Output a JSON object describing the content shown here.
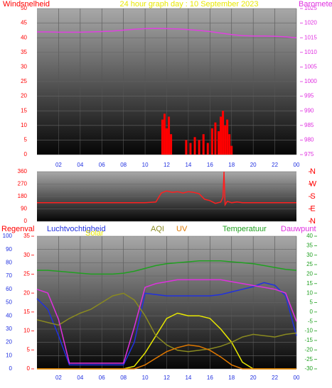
{
  "title": "24 hour graph day : 10 September 2023",
  "chart_data": [
    {
      "type": "combo",
      "ylabel": "Windsnelheid",
      "y2label": "Barometer",
      "xlim": [
        0,
        24
      ],
      "xticks": [
        {
          "value": 2,
          "label": "02"
        },
        {
          "value": 4,
          "label": "04"
        },
        {
          "value": 6,
          "label": "06"
        },
        {
          "value": 8,
          "label": "08"
        },
        10,
        12,
        14,
        16,
        18,
        20,
        22,
        {
          "value": 24,
          "label": "00"
        }
      ],
      "ylim": [
        0,
        50
      ],
      "yticks": [
        0,
        5,
        10,
        15,
        20,
        25,
        30,
        35,
        40,
        45,
        50
      ],
      "y2lim": [
        975,
        1025
      ],
      "y2ticks": [
        975,
        980,
        985,
        990,
        995,
        1000,
        1005,
        1010,
        1015,
        1020,
        1025
      ],
      "series": [
        {
          "kind": "bar",
          "color": "#ff0000",
          "x": [
            11.6,
            11.8,
            12.0,
            12.2,
            12.4,
            13.8,
            14.2,
            14.6,
            15.0,
            15.4,
            15.8,
            16.2,
            16.5,
            16.8,
            17.0,
            17.2,
            17.4,
            17.6,
            17.8,
            18.0
          ],
          "values": [
            12,
            14,
            9,
            13,
            7,
            5,
            4,
            6,
            5,
            7,
            4,
            9,
            11,
            8,
            13,
            15,
            10,
            12,
            7,
            3
          ]
        },
        {
          "kind": "line",
          "axis": "y2",
          "color": "#e040e0",
          "x": [
            0,
            1,
            2,
            3,
            4,
            5,
            6,
            7,
            8,
            9,
            10,
            11,
            12,
            13,
            14,
            15,
            16,
            17,
            18,
            19,
            20,
            21,
            22,
            23,
            24
          ],
          "values": [
            1017,
            1017,
            1016.9,
            1016.9,
            1016.9,
            1017,
            1017.1,
            1017.3,
            1017.6,
            1017.9,
            1018.1,
            1018.2,
            1018.1,
            1018,
            1017.8,
            1017.5,
            1017.1,
            1016.6,
            1016.1,
            1015.7,
            1015.6,
            1015.6,
            1015.5,
            1015.3,
            1015
          ]
        }
      ]
    },
    {
      "type": "line",
      "xlim": [
        0,
        24
      ],
      "ylim": [
        0,
        360
      ],
      "yticks": [
        0,
        90,
        180,
        270,
        360
      ],
      "y2ticks": [
        {
          "value": 360,
          "label": "N"
        },
        {
          "value": 270,
          "label": "W"
        },
        {
          "value": 180,
          "label": "S"
        },
        {
          "value": 90,
          "label": "E"
        },
        {
          "value": 0,
          "label": "N"
        }
      ],
      "series": [
        {
          "color": "#ff2020",
          "x": [
            0,
            2,
            4,
            6,
            8,
            10,
            11,
            11.5,
            12,
            12.5,
            13,
            13.5,
            14,
            14.5,
            15,
            15.5,
            16,
            16.5,
            17,
            17.2,
            17.3,
            17.4,
            17.6,
            18,
            18.5,
            19,
            20,
            22,
            24
          ],
          "values": [
            135,
            135,
            135,
            135,
            135,
            135,
            140,
            205,
            220,
            210,
            215,
            205,
            215,
            210,
            200,
            160,
            150,
            130,
            140,
            175,
            360,
            120,
            145,
            135,
            140,
            135,
            135,
            135,
            135
          ]
        }
      ]
    },
    {
      "type": "line",
      "ylabel": "Regenval",
      "xlim": [
        0,
        24
      ],
      "xticks": [
        {
          "value": 2,
          "label": "02"
        },
        {
          "value": 4,
          "label": "04"
        },
        {
          "value": 6,
          "label": "06"
        },
        {
          "value": 8,
          "label": "08"
        },
        10,
        12,
        14,
        16,
        18,
        20,
        22,
        {
          "value": 24,
          "label": "00"
        }
      ],
      "x": [
        0,
        1,
        2,
        3,
        4,
        5,
        6,
        7,
        8,
        9,
        10,
        11,
        12,
        13,
        14,
        15,
        16,
        17,
        18,
        19,
        20,
        21,
        22,
        23,
        24
      ],
      "ylim": [
        0,
        100
      ],
      "yticks": [
        0,
        10,
        20,
        30,
        40,
        50,
        60,
        70,
        80,
        90,
        100
      ],
      "y3lim": [
        0,
        35
      ],
      "y3ticks": [
        0,
        5,
        10,
        15,
        20,
        25,
        30,
        35
      ],
      "y2lim": [
        -30,
        40
      ],
      "y2ticks": [
        -30,
        -25,
        -20,
        -15,
        -10,
        -5,
        0,
        5,
        10,
        15,
        20,
        25,
        30,
        35,
        40
      ],
      "series": [
        {
          "name": "Luchtvochtigheid",
          "color": "#2030e0",
          "values": [
            53,
            45,
            25,
            3,
            3,
            3,
            3,
            3,
            3,
            20,
            57,
            56,
            55,
            55,
            55,
            55,
            55,
            56,
            58,
            60,
            62,
            65,
            63,
            55,
            25
          ]
        },
        {
          "name": "Solar",
          "color": "#e8e800",
          "values": [
            0,
            0,
            0,
            0,
            0,
            0,
            0,
            0,
            0,
            2,
            12,
            25,
            38,
            42,
            40,
            40,
            38,
            30,
            20,
            5,
            0,
            0,
            0,
            0,
            0
          ]
        },
        {
          "name": "AQI",
          "color": "#8a8a20",
          "values": [
            37,
            35,
            33,
            38,
            42,
            45,
            50,
            55,
            57,
            52,
            40,
            25,
            18,
            14,
            13,
            14,
            15,
            17,
            20,
            24,
            26,
            25,
            24,
            26,
            27
          ]
        },
        {
          "name": "UV",
          "color": "#e07800",
          "values": [
            0,
            0,
            0,
            0,
            0,
            0,
            0,
            0,
            0,
            0,
            3,
            8,
            13,
            16,
            18,
            17,
            14,
            9,
            3,
            0,
            0,
            0,
            0,
            0,
            0
          ]
        },
        {
          "name": "Temperatuur",
          "axis": "y2",
          "color": "#20a020",
          "values": [
            22,
            22,
            21.5,
            21,
            20.5,
            20,
            20,
            20,
            20.5,
            21.5,
            23,
            24.5,
            25.5,
            26,
            26.5,
            27,
            27,
            27,
            26.5,
            26,
            25.5,
            24.5,
            23.5,
            22.5,
            22
          ]
        },
        {
          "name": "Dauwpunt",
          "axis": "y2",
          "color": "#e030e0",
          "values": [
            12,
            10,
            -4,
            -27,
            -27,
            -27,
            -27,
            -27,
            -27,
            -8,
            13,
            15,
            16,
            17,
            17,
            17,
            17,
            17,
            16,
            15,
            14,
            13,
            12,
            10,
            -5
          ]
        }
      ]
    }
  ]
}
